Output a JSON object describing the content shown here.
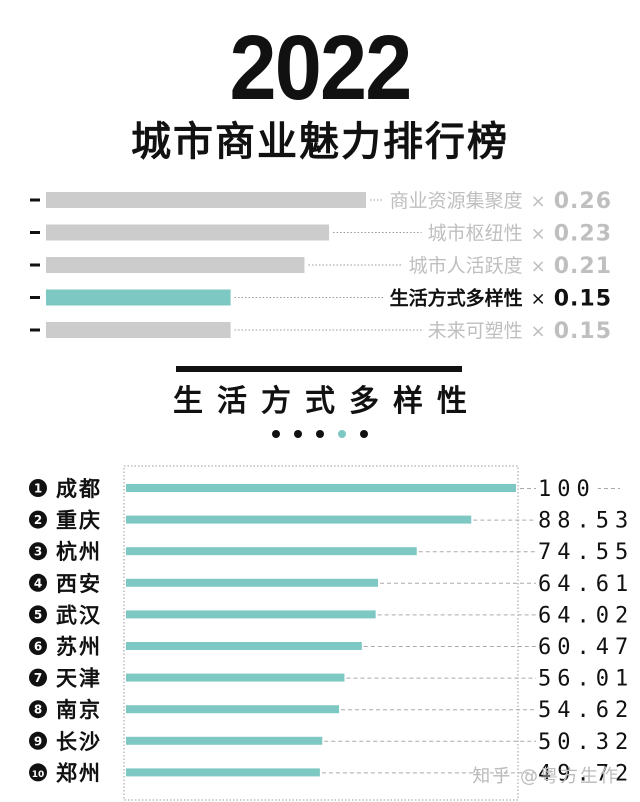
{
  "header": {
    "year": "2022",
    "title": "城市商业魅力排行榜"
  },
  "weights": [
    {
      "label": "商业资源集聚度",
      "value": 0.26,
      "text": "0.26",
      "highlight": false
    },
    {
      "label": "城市枢纽性",
      "value": 0.23,
      "text": "0.23",
      "highlight": false
    },
    {
      "label": "城市人活跃度",
      "value": 0.21,
      "text": "0.21",
      "highlight": false
    },
    {
      "label": "生活方式多样性",
      "value": 0.15,
      "text": "0.15",
      "highlight": true
    },
    {
      "label": "未来可塑性",
      "value": 0.15,
      "text": "0.15",
      "highlight": false
    }
  ],
  "weight_multiplier": "×",
  "section_title": "生活方式多样性",
  "pager": {
    "count": 5,
    "active_index": 3
  },
  "chart_data": {
    "type": "bar",
    "orientation": "horizontal",
    "title": "生活方式多样性",
    "xlim": [
      0,
      100
    ],
    "categories": [
      "成都",
      "重庆",
      "杭州",
      "西安",
      "武汉",
      "苏州",
      "天津",
      "南京",
      "长沙",
      "郑州"
    ],
    "ranks": [
      "1",
      "2",
      "3",
      "4",
      "5",
      "6",
      "7",
      "8",
      "9",
      "10"
    ],
    "values": [
      100,
      88.53,
      74.55,
      64.61,
      64.02,
      60.47,
      56.01,
      54.62,
      50.32,
      49.72
    ],
    "value_labels": [
      "100",
      "88.53",
      "74.55",
      "64.61",
      "64.02",
      "60.47",
      "56.01",
      "54.62",
      "50.32",
      "49.72"
    ]
  },
  "colors": {
    "accent": "#7ec8c4",
    "gray_bar": "#cccccc",
    "muted_text": "#bfbfbf",
    "dark_text": "#111111"
  },
  "watermark": "知乎 @粤方生作"
}
